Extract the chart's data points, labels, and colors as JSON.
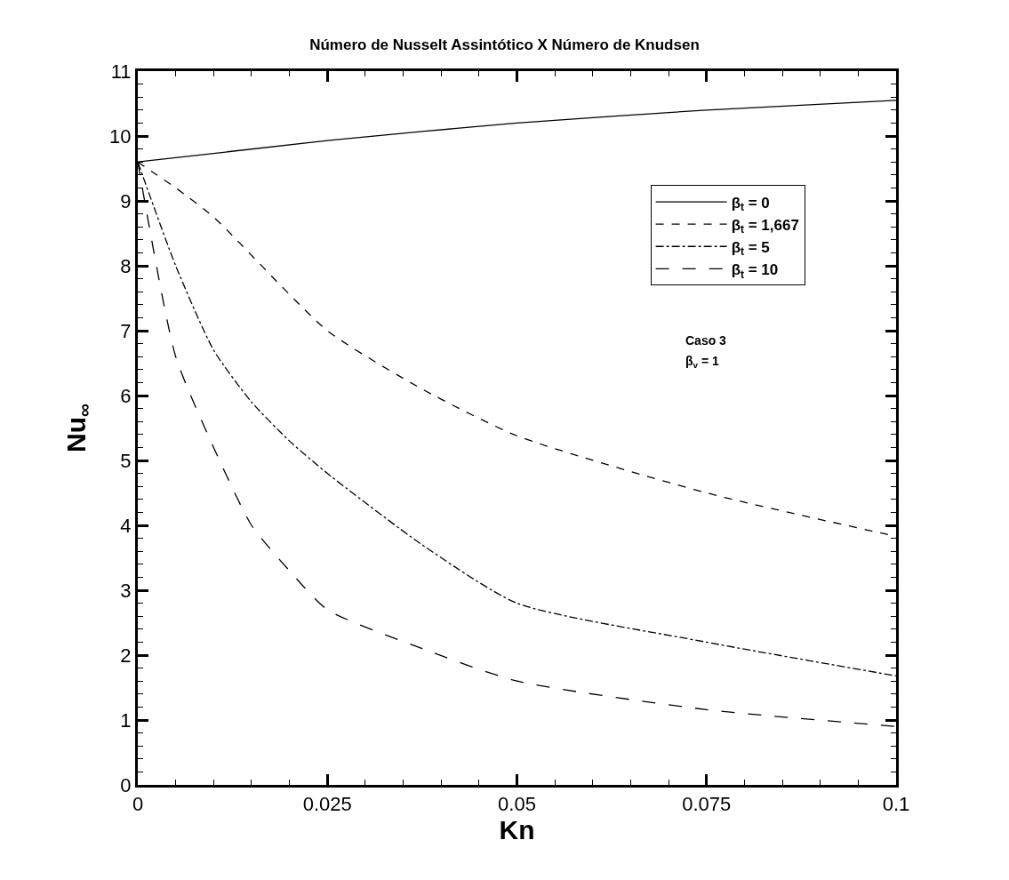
{
  "chart_data": {
    "type": "line",
    "title": "Número de Nusselt Assintótico X Número de Knudsen",
    "xlabel": "Kn",
    "ylabel": "Nu$_{∞}$",
    "xlim": [
      0,
      0.1
    ],
    "xticks": [
      0,
      0.025,
      0.05,
      0.075,
      0.1
    ],
    "ylim": [
      0,
      11
    ],
    "yticks": [
      0,
      1,
      2,
      3,
      4,
      5,
      6,
      7,
      8,
      9,
      10,
      11
    ],
    "legend": "top right",
    "marker": "none",
    "annotations": [
      "Caso 3",
      "β$_{v}$ = 1"
    ],
    "series": [
      {
        "name": "β$_{t}$ = 0",
        "color": "#000000",
        "line_style": "solid",
        "x": [
          0,
          0.025,
          0.05,
          0.075,
          0.1
        ],
        "values": [
          9.6,
          9.93,
          10.2,
          10.4,
          10.55
        ]
      },
      {
        "name": "β$_{t}$ = 1,667",
        "color": "#000000",
        "line_style": "dashed",
        "x": [
          0,
          0.0025,
          0.005,
          0.01,
          0.025,
          0.0375,
          0.05,
          0.075,
          0.1
        ],
        "values": [
          9.6,
          9.4,
          9.2,
          8.75,
          7.0,
          6.1,
          5.38,
          4.5,
          3.83
        ]
      },
      {
        "name": "β$_{t}$ = 5",
        "color": "#000000",
        "line_style": "dashdot",
        "x": [
          0,
          0.005,
          0.01,
          0.015,
          0.02,
          0.025,
          0.0375,
          0.05,
          0.075,
          0.1
        ],
        "values": [
          9.6,
          8.0,
          6.7,
          5.9,
          5.3,
          4.8,
          3.7,
          2.8,
          2.2,
          1.68
        ]
      },
      {
        "name": "β$_{t}$ = 10",
        "color": "#000000",
        "line_style": "longdash",
        "x": [
          0,
          0.005,
          0.01,
          0.015,
          0.02,
          0.025,
          0.0375,
          0.05,
          0.075,
          0.1
        ],
        "values": [
          9.6,
          6.6,
          5.2,
          4.0,
          3.3,
          2.7,
          2.1,
          1.6,
          1.16,
          0.9
        ]
      }
    ]
  }
}
